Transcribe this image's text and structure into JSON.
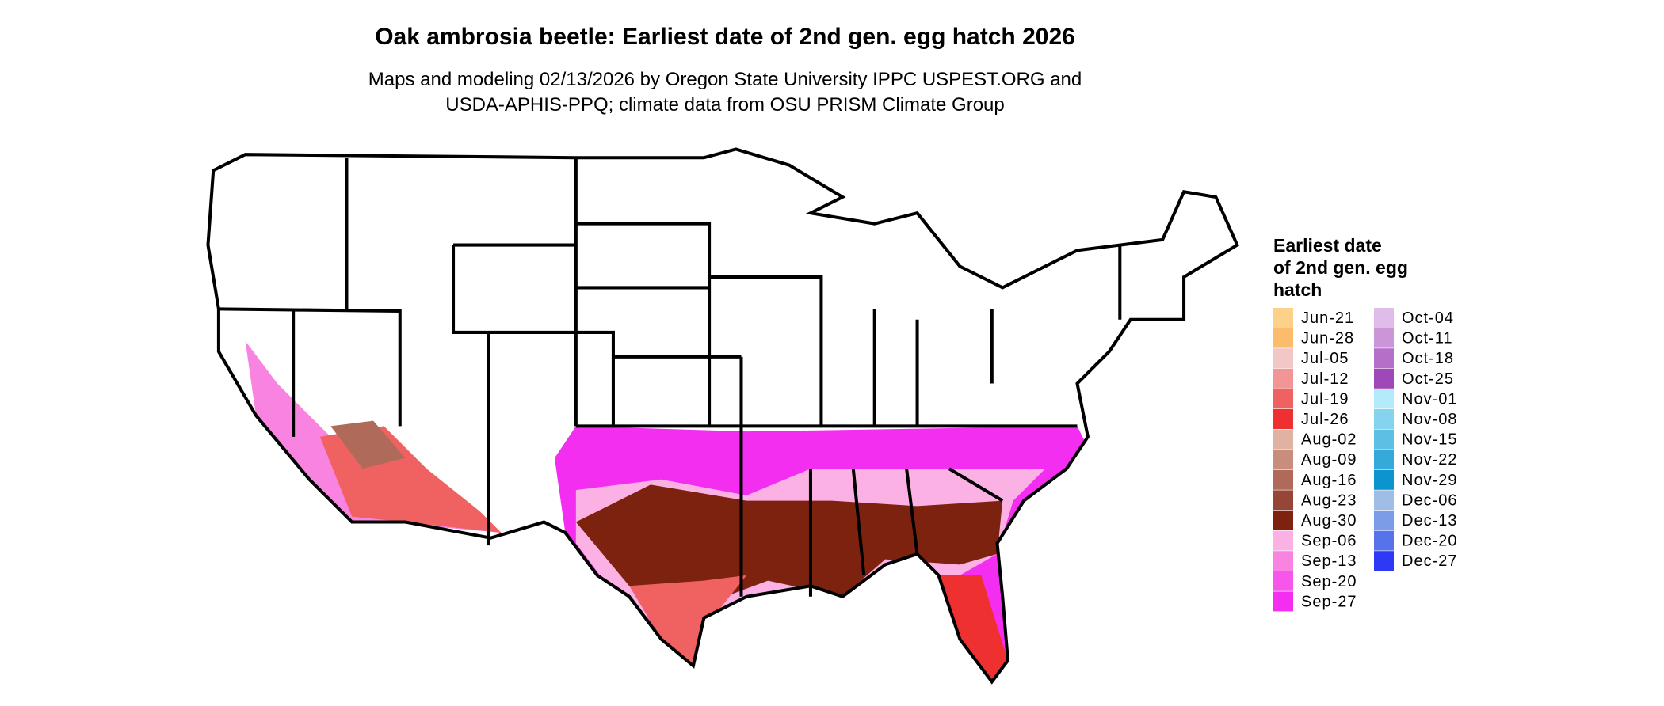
{
  "title": "Oak ambrosia beetle: Earliest date of 2nd gen. egg hatch 2026",
  "subtitle": [
    "Maps and modeling 02/13/2026 by Oregon State University IPPC USPEST.ORG and",
    "USDA-APHIS-PPQ; climate data from OSU PRISM Climate Group"
  ],
  "legend": {
    "title": [
      "Earliest date",
      "of 2nd gen. egg",
      "hatch"
    ],
    "items": [
      {
        "label": "Jun-21",
        "color": "#fdd18a"
      },
      {
        "label": "Jun-28",
        "color": "#fbbd6b"
      },
      {
        "label": "Jul-05",
        "color": "#f4c7c7"
      },
      {
        "label": "Jul-12",
        "color": "#f29595"
      },
      {
        "label": "Jul-19",
        "color": "#f06262"
      },
      {
        "label": "Jul-26",
        "color": "#ee3030"
      },
      {
        "label": "Aug-02",
        "color": "#e0b2a4"
      },
      {
        "label": "Aug-09",
        "color": "#c98d7e"
      },
      {
        "label": "Aug-16",
        "color": "#b06a5a"
      },
      {
        "label": "Aug-23",
        "color": "#974536"
      },
      {
        "label": "Aug-30",
        "color": "#7e2210"
      },
      {
        "label": "Sep-06",
        "color": "#fbb1e4"
      },
      {
        "label": "Sep-13",
        "color": "#f883e0"
      },
      {
        "label": "Sep-20",
        "color": "#f656e9"
      },
      {
        "label": "Sep-27",
        "color": "#f42ef0"
      },
      {
        "label": "Oct-04",
        "color": "#e0bde8"
      },
      {
        "label": "Oct-11",
        "color": "#cb96d8"
      },
      {
        "label": "Oct-18",
        "color": "#b56fc8"
      },
      {
        "label": "Oct-25",
        "color": "#9f48b8"
      },
      {
        "label": "Nov-01",
        "color": "#b3ebfb"
      },
      {
        "label": "Nov-08",
        "color": "#86d3f0"
      },
      {
        "label": "Nov-15",
        "color": "#5ebfe5"
      },
      {
        "label": "Nov-22",
        "color": "#35a9da"
      },
      {
        "label": "Nov-29",
        "color": "#0c94cf"
      },
      {
        "label": "Dec-06",
        "color": "#9fbde6"
      },
      {
        "label": "Dec-13",
        "color": "#7b9ce6"
      },
      {
        "label": "Dec-20",
        "color": "#5773ec"
      },
      {
        "label": "Dec-27",
        "color": "#2d39f5"
      }
    ]
  }
}
